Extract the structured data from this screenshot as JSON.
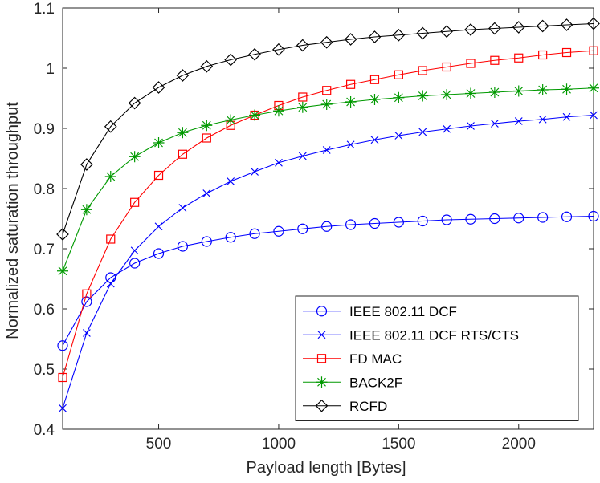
{
  "chart_data": {
    "type": "line",
    "title": "",
    "xlabel": "Payload length [Bytes]",
    "ylabel": "Normalized saturation throughput",
    "xlim": [
      100,
      2312
    ],
    "ylim": [
      0.4,
      1.1
    ],
    "xticks": [
      500,
      1000,
      1500,
      2000
    ],
    "xtick_labels": [
      "500",
      "1000",
      "1500",
      "2000"
    ],
    "yticks": [
      0.4,
      0.5,
      0.6,
      0.7,
      0.8,
      0.9,
      1.0,
      1.1
    ],
    "ytick_labels": [
      "0.4",
      "0.5",
      "0.6",
      "0.7",
      "0.8",
      "0.9",
      "1",
      "1.1"
    ],
    "grid": false,
    "legend_position": "bottom-right",
    "x": [
      100,
      200,
      300,
      400,
      500,
      600,
      700,
      800,
      900,
      1000,
      1100,
      1200,
      1300,
      1400,
      1500,
      1600,
      1700,
      1800,
      1900,
      2000,
      2100,
      2200,
      2312
    ],
    "series": [
      {
        "name": "IEEE 802.11 DCF",
        "color": "#0000ff",
        "marker": "circle",
        "values": [
          0.539,
          0.612,
          0.652,
          0.676,
          0.692,
          0.704,
          0.712,
          0.719,
          0.725,
          0.729,
          0.733,
          0.737,
          0.74,
          0.742,
          0.744,
          0.746,
          0.748,
          0.749,
          0.75,
          0.751,
          0.752,
          0.753,
          0.754
        ]
      },
      {
        "name": "IEEE 802.11 DCF RTS/CTS",
        "color": "#0000ff",
        "marker": "x",
        "values": [
          0.435,
          0.56,
          0.642,
          0.697,
          0.737,
          0.768,
          0.792,
          0.812,
          0.828,
          0.843,
          0.854,
          0.864,
          0.873,
          0.881,
          0.888,
          0.894,
          0.899,
          0.904,
          0.908,
          0.912,
          0.915,
          0.919,
          0.922
        ]
      },
      {
        "name": "FD MAC",
        "color": "#ff0000",
        "marker": "square",
        "values": [
          0.486,
          0.625,
          0.716,
          0.777,
          0.822,
          0.857,
          0.884,
          0.905,
          0.922,
          0.938,
          0.952,
          0.963,
          0.973,
          0.981,
          0.989,
          0.996,
          1.002,
          1.008,
          1.013,
          1.017,
          1.022,
          1.026,
          1.029
        ]
      },
      {
        "name": "BACK2F",
        "color": "#009900",
        "marker": "asterisk",
        "values": [
          0.663,
          0.765,
          0.82,
          0.853,
          0.876,
          0.893,
          0.905,
          0.914,
          0.922,
          0.929,
          0.935,
          0.94,
          0.944,
          0.948,
          0.951,
          0.954,
          0.956,
          0.958,
          0.96,
          0.962,
          0.964,
          0.965,
          0.967
        ]
      },
      {
        "name": "RCFD",
        "color": "#000000",
        "marker": "diamond",
        "values": [
          0.724,
          0.84,
          0.903,
          0.942,
          0.968,
          0.988,
          1.003,
          1.014,
          1.023,
          1.031,
          1.038,
          1.043,
          1.048,
          1.052,
          1.055,
          1.058,
          1.061,
          1.064,
          1.066,
          1.068,
          1.07,
          1.072,
          1.074
        ]
      }
    ]
  }
}
